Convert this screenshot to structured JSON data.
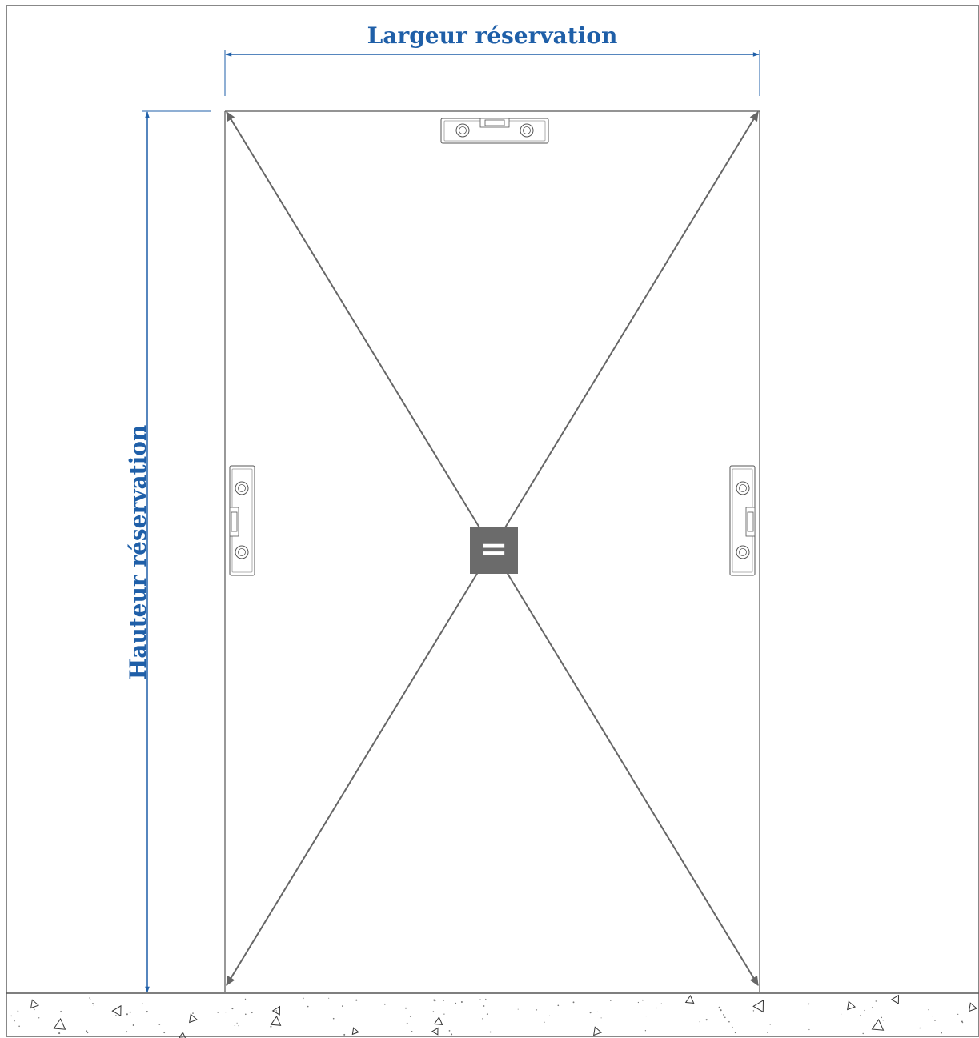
{
  "dimensions": {
    "width_label": "Largeur réservation",
    "height_label": "Hauteur réservation"
  },
  "center_marker": {
    "symbol": "=",
    "meaning": "equal diagonals"
  },
  "tools": {
    "levels": [
      {
        "name": "spirit-level-top",
        "orientation": "horizontal"
      },
      {
        "name": "spirit-level-left",
        "orientation": "vertical"
      },
      {
        "name": "spirit-level-right",
        "orientation": "vertical"
      }
    ]
  },
  "colors": {
    "dimension": "#1f5fa8",
    "diagonal": "#666666",
    "frame": "#555555",
    "marker_bg": "#6b6b6b"
  }
}
